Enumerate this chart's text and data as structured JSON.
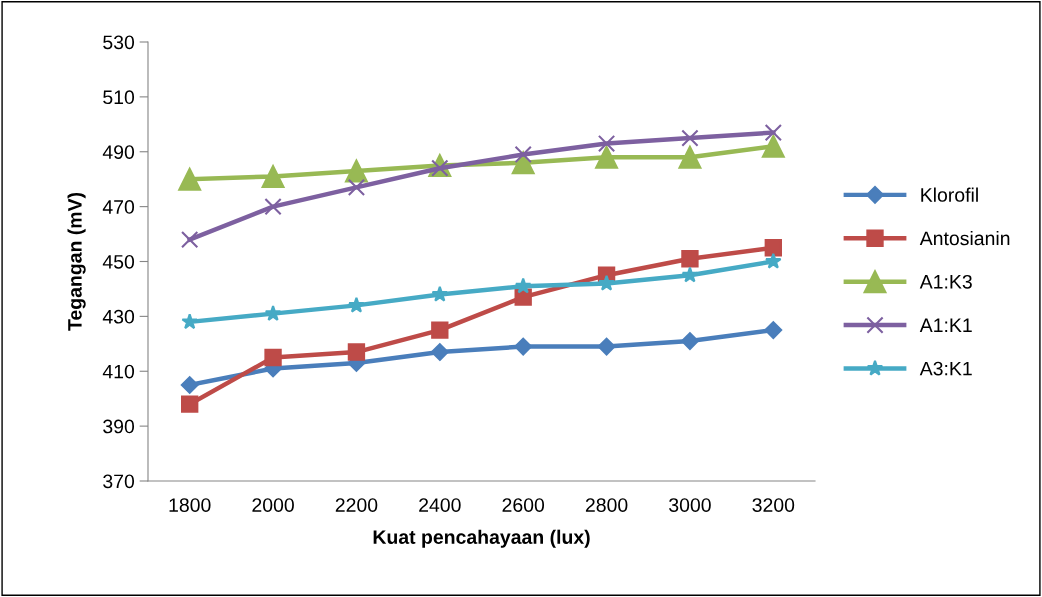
{
  "chart_data": {
    "type": "line",
    "xlabel": "Kuat pencahayaan (lux)",
    "ylabel": "Tegangan (mV)",
    "categories": [
      "1800",
      "2000",
      "2200",
      "2400",
      "2600",
      "2800",
      "3000",
      "3200"
    ],
    "ylim": [
      370,
      530
    ],
    "yticks": [
      370,
      390,
      410,
      430,
      450,
      470,
      490,
      510,
      530
    ],
    "grid": false,
    "legend": "right",
    "line_style": "solid",
    "series": [
      {
        "name": "Klorofil",
        "color": "#4a7ebb",
        "marker": "diamond",
        "values": [
          405,
          411,
          413,
          417,
          419,
          419,
          421,
          425
        ]
      },
      {
        "name": "Antosianin",
        "color": "#be4b48",
        "marker": "square",
        "values": [
          398,
          415,
          417,
          425,
          437,
          445,
          451,
          455
        ]
      },
      {
        "name": "A1:K3",
        "color": "#98b954",
        "marker": "triangle",
        "values": [
          480,
          481,
          483,
          485,
          486,
          488,
          488,
          492
        ]
      },
      {
        "name": "A1:K1",
        "color": "#7d60a0",
        "marker": "cross",
        "values": [
          458,
          470,
          477,
          484,
          489,
          493,
          495,
          497
        ]
      },
      {
        "name": "A3:K1",
        "color": "#46aac5",
        "marker": "star",
        "values": [
          428,
          431,
          434,
          438,
          441,
          442,
          445,
          450
        ]
      }
    ]
  }
}
